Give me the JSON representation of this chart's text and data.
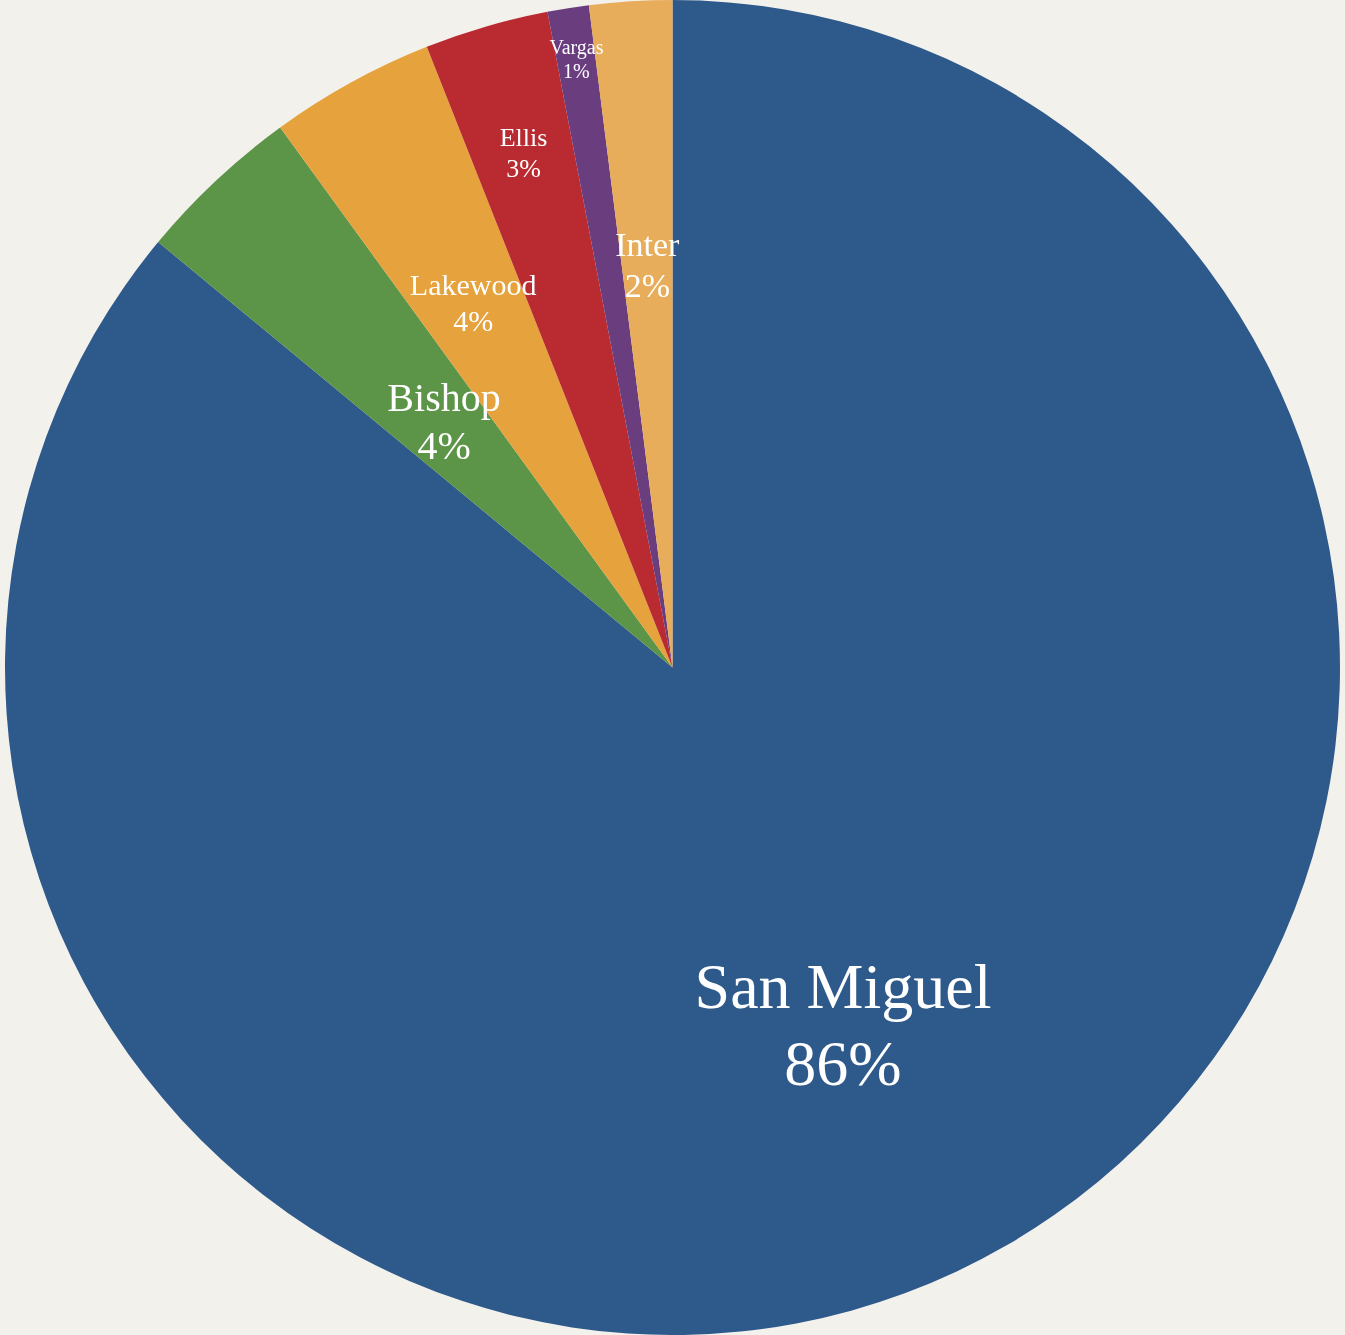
{
  "chart_data": {
    "type": "pie",
    "categories": [
      "San Miguel",
      "Bishop",
      "Lakewood",
      "Ellis",
      "Vargas",
      "Inter"
    ],
    "values": [
      86,
      4,
      4,
      3,
      1,
      2
    ],
    "value_labels": [
      "86%",
      "4%",
      "4%",
      "3%",
      "1%",
      "2%"
    ],
    "colors": [
      "#2e598b",
      "#5c9448",
      "#e6a23c",
      "#b92b30",
      "#6a3d7f",
      "#e8ad5a"
    ],
    "legend": false
  }
}
